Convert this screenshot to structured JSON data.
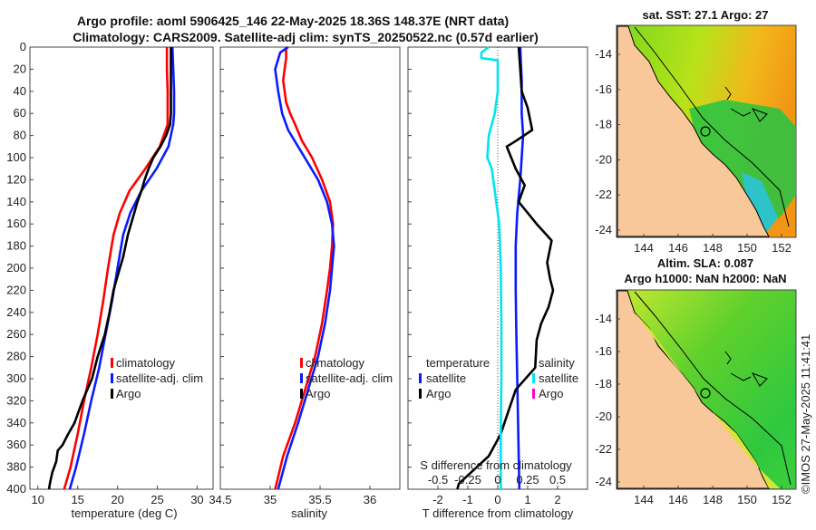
{
  "header": {
    "line1": "Argo profile: aoml 5906425_146 22-May-2025 18.36S 148.37E (NRT data)",
    "line2": "Climatology: CARS2009. Satellite-adj clim: synTS_20250522.nc (0.57d earlier)"
  },
  "footer_stamp": "©IMOS 27-May-2025 11:41:41",
  "colors": {
    "climatology": "#ff0000",
    "satellite": "#0a1cff",
    "argo": "#000000",
    "sal_satellite": "#00e5f0",
    "sal_argo": "#ff00cc"
  },
  "chart_data": [
    {
      "type": "line",
      "id": "temperature",
      "xlabel": "temperature (deg C)",
      "xlim": [
        9,
        32
      ],
      "xticks": [
        10,
        15,
        20,
        25,
        30
      ],
      "ylim": [
        0,
        400
      ],
      "yticks": [
        0,
        20,
        40,
        60,
        80,
        100,
        120,
        140,
        160,
        180,
        200,
        220,
        240,
        260,
        280,
        300,
        320,
        340,
        360,
        380,
        400
      ],
      "legend": [
        "climatology",
        "satellite-adj. clim",
        "Argo"
      ],
      "series": [
        {
          "name": "climatology",
          "color": "#ff0000",
          "points": [
            [
              26.2,
              0
            ],
            [
              26.2,
              20
            ],
            [
              26.3,
              40
            ],
            [
              26.3,
              60
            ],
            [
              26.3,
              70
            ],
            [
              25.3,
              90
            ],
            [
              23.5,
              110
            ],
            [
              21.5,
              130
            ],
            [
              20.3,
              150
            ],
            [
              19.5,
              170
            ],
            [
              18.8,
              200
            ],
            [
              18.2,
              230
            ],
            [
              17.5,
              260
            ],
            [
              16.7,
              290
            ],
            [
              15.8,
              320
            ],
            [
              15.0,
              350
            ],
            [
              14.1,
              380
            ],
            [
              13.3,
              400
            ]
          ]
        },
        {
          "name": "satellite-adj. clim",
          "color": "#0a1cff",
          "points": [
            [
              26.9,
              0
            ],
            [
              27.0,
              20
            ],
            [
              27.1,
              40
            ],
            [
              27.1,
              60
            ],
            [
              27.0,
              70
            ],
            [
              26.4,
              90
            ],
            [
              24.9,
              110
            ],
            [
              23.0,
              130
            ],
            [
              21.6,
              150
            ],
            [
              20.7,
              170
            ],
            [
              20.0,
              200
            ],
            [
              19.3,
              230
            ],
            [
              18.5,
              260
            ],
            [
              17.7,
              290
            ],
            [
              16.7,
              320
            ],
            [
              15.8,
              350
            ],
            [
              14.8,
              380
            ],
            [
              14.0,
              400
            ]
          ]
        },
        {
          "name": "Argo",
          "color": "#000000",
          "points": [
            [
              26.7,
              0
            ],
            [
              26.7,
              20
            ],
            [
              26.7,
              40
            ],
            [
              26.7,
              60
            ],
            [
              26.6,
              70
            ],
            [
              26.1,
              80
            ],
            [
              25.4,
              90
            ],
            [
              24.5,
              100
            ],
            [
              23.9,
              110
            ],
            [
              23.4,
              120
            ],
            [
              23.0,
              130
            ],
            [
              22.5,
              140
            ],
            [
              22.1,
              150
            ],
            [
              21.7,
              160
            ],
            [
              21.3,
              170
            ],
            [
              21.0,
              180
            ],
            [
              20.7,
              190
            ],
            [
              20.3,
              200
            ],
            [
              19.9,
              210
            ],
            [
              19.5,
              220
            ],
            [
              19.0,
              240
            ],
            [
              18.4,
              260
            ],
            [
              17.5,
              280
            ],
            [
              16.8,
              300
            ],
            [
              16.2,
              310
            ],
            [
              15.6,
              320
            ],
            [
              15.1,
              330
            ],
            [
              14.6,
              340
            ],
            [
              13.8,
              350
            ],
            [
              13.1,
              360
            ],
            [
              12.5,
              365
            ],
            [
              12.3,
              375
            ],
            [
              11.8,
              385
            ],
            [
              11.5,
              395
            ],
            [
              11.4,
              400
            ]
          ]
        }
      ]
    },
    {
      "type": "line",
      "id": "salinity",
      "xlabel": "salinity",
      "xlim": [
        34.5,
        36.3
      ],
      "xticks": [
        34.5,
        35,
        35.5,
        36
      ],
      "ylim": [
        0,
        400
      ],
      "legend": [
        "climatology",
        "satellite-adj. clim",
        "Argo"
      ],
      "series": [
        {
          "name": "climatology",
          "color": "#ff0000",
          "points": [
            [
              35.16,
              0
            ],
            [
              35.16,
              10
            ],
            [
              35.13,
              30
            ],
            [
              35.16,
              50
            ],
            [
              35.2,
              60
            ],
            [
              35.25,
              70
            ],
            [
              35.32,
              85
            ],
            [
              35.42,
              100
            ],
            [
              35.52,
              120
            ],
            [
              35.6,
              140
            ],
            [
              35.63,
              160
            ],
            [
              35.62,
              180
            ],
            [
              35.6,
              200
            ],
            [
              35.57,
              220
            ],
            [
              35.52,
              250
            ],
            [
              35.45,
              280
            ],
            [
              35.35,
              310
            ],
            [
              35.25,
              340
            ],
            [
              35.13,
              370
            ],
            [
              35.05,
              400
            ]
          ]
        },
        {
          "name": "satellite-adj. clim",
          "color": "#0a1cff",
          "points": [
            [
              35.18,
              0
            ],
            [
              35.1,
              5
            ],
            [
              35.05,
              20
            ],
            [
              35.08,
              40
            ],
            [
              35.12,
              60
            ],
            [
              35.18,
              75
            ],
            [
              35.28,
              90
            ],
            [
              35.38,
              105
            ],
            [
              35.48,
              120
            ],
            [
              35.57,
              140
            ],
            [
              35.62,
              160
            ],
            [
              35.64,
              180
            ],
            [
              35.62,
              200
            ],
            [
              35.6,
              220
            ],
            [
              35.55,
              250
            ],
            [
              35.48,
              280
            ],
            [
              35.38,
              310
            ],
            [
              35.28,
              340
            ],
            [
              35.17,
              370
            ],
            [
              35.08,
              400
            ]
          ]
        },
        {
          "name": "Argo",
          "color": "#000000",
          "points": []
        }
      ]
    },
    {
      "type": "line",
      "id": "difference",
      "xlabel": "T difference from climatology",
      "xlabel_top": "S difference from climatology",
      "xlim": [
        -3,
        3
      ],
      "xticks": [
        -2,
        -1,
        0,
        1,
        2
      ],
      "xticks_top_labels": [
        "-0.5",
        "-0.25",
        "0",
        "0.25",
        "0.5"
      ],
      "xticks_top_values": [
        -2,
        -1,
        0,
        1,
        2
      ],
      "legend_temperature": {
        "heading": "temperature",
        "items": [
          "satellite",
          "Argo"
        ]
      },
      "legend_salinity": {
        "heading": "salinity",
        "items": [
          "satellite",
          "Argo"
        ]
      },
      "series": [
        {
          "name": "T satellite",
          "color": "#0a1cff",
          "points": [
            [
              0.75,
              0
            ],
            [
              0.8,
              30
            ],
            [
              0.8,
              60
            ],
            [
              0.85,
              80
            ],
            [
              0.8,
              100
            ],
            [
              0.75,
              120
            ],
            [
              0.65,
              150
            ],
            [
              0.6,
              180
            ],
            [
              0.6,
              220
            ],
            [
              0.62,
              260
            ],
            [
              0.65,
              300
            ],
            [
              0.68,
              340
            ],
            [
              0.7,
              370
            ],
            [
              0.72,
              400
            ]
          ]
        },
        {
          "name": "T Argo",
          "color": "#000000",
          "points": [
            [
              0.7,
              0
            ],
            [
              0.75,
              20
            ],
            [
              0.8,
              40
            ],
            [
              1.0,
              55
            ],
            [
              1.15,
              75
            ],
            [
              0.6,
              85
            ],
            [
              0.3,
              90
            ],
            [
              0.6,
              110
            ],
            [
              0.9,
              125
            ],
            [
              0.7,
              140
            ],
            [
              1.3,
              160
            ],
            [
              1.8,
              175
            ],
            [
              1.65,
              195
            ],
            [
              1.75,
              210
            ],
            [
              1.85,
              220
            ],
            [
              1.7,
              235
            ],
            [
              1.45,
              250
            ],
            [
              1.3,
              265
            ],
            [
              1.25,
              290
            ],
            [
              0.6,
              310
            ],
            [
              0.35,
              330
            ],
            [
              0.1,
              350
            ],
            [
              -0.3,
              370
            ],
            [
              -0.9,
              385
            ],
            [
              -1.3,
              395
            ],
            [
              -1.35,
              400
            ]
          ]
        },
        {
          "name": "S satellite",
          "color": "#00e5f0",
          "points": [
            [
              -0.3,
              0
            ],
            [
              -0.55,
              5
            ],
            [
              -0.55,
              10
            ],
            [
              0,
              12
            ],
            [
              0,
              40
            ],
            [
              -0.1,
              60
            ],
            [
              -0.3,
              80
            ],
            [
              -0.35,
              100
            ],
            [
              -0.2,
              110
            ],
            [
              -0.1,
              130
            ],
            [
              0.05,
              160
            ],
            [
              0.1,
              200
            ],
            [
              0.12,
              250
            ],
            [
              0.12,
              300
            ],
            [
              0.1,
              350
            ],
            [
              0.1,
              400
            ]
          ]
        },
        {
          "name": "S Argo",
          "color": "#ff00cc",
          "points": []
        }
      ]
    }
  ],
  "map_sst": {
    "title": "sat. SST: 27.1 Argo: 27",
    "xticks": [
      "144",
      "146",
      "148",
      "150",
      "152"
    ],
    "yticks": [
      "-14",
      "-16",
      "-18",
      "-20",
      "-22",
      "-24"
    ]
  },
  "map_sla": {
    "title1": "Altim. SLA: 0.087",
    "title2": "Argo h1000: NaN h2000: NaN",
    "xticks": [
      "144",
      "146",
      "148",
      "150",
      "152"
    ],
    "yticks": [
      "-14",
      "-16",
      "-18",
      "-20",
      "-22",
      "-24"
    ]
  }
}
